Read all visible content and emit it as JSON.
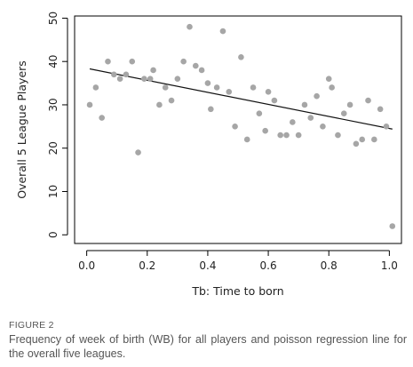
{
  "chart_data": {
    "type": "scatter",
    "title": "",
    "xlabel": "Tb: Time to born",
    "ylabel": "Overall 5 League Players",
    "xlim": [
      -0.04,
      1.04
    ],
    "ylim": [
      -2,
      50.5
    ],
    "xticks": [
      0.0,
      0.2,
      0.4,
      0.6,
      0.8,
      1.0
    ],
    "xtick_labels": [
      "0.0",
      "0.2",
      "0.4",
      "0.6",
      "0.8",
      "1.0"
    ],
    "yticks": [
      0,
      10,
      20,
      30,
      40,
      50
    ],
    "ytick_labels": [
      "0",
      "10",
      "20",
      "30",
      "40",
      "50"
    ],
    "grid": false,
    "point_color": "#a6a6a6",
    "line_color": "#111111",
    "points": [
      {
        "x": 0.01,
        "y": 30
      },
      {
        "x": 0.03,
        "y": 34
      },
      {
        "x": 0.05,
        "y": 27
      },
      {
        "x": 0.07,
        "y": 40
      },
      {
        "x": 0.09,
        "y": 37
      },
      {
        "x": 0.11,
        "y": 36
      },
      {
        "x": 0.13,
        "y": 37
      },
      {
        "x": 0.15,
        "y": 40
      },
      {
        "x": 0.17,
        "y": 19
      },
      {
        "x": 0.19,
        "y": 36
      },
      {
        "x": 0.21,
        "y": 36
      },
      {
        "x": 0.22,
        "y": 38
      },
      {
        "x": 0.24,
        "y": 30
      },
      {
        "x": 0.26,
        "y": 34
      },
      {
        "x": 0.28,
        "y": 31
      },
      {
        "x": 0.3,
        "y": 36
      },
      {
        "x": 0.32,
        "y": 40
      },
      {
        "x": 0.34,
        "y": 48
      },
      {
        "x": 0.36,
        "y": 39
      },
      {
        "x": 0.38,
        "y": 38
      },
      {
        "x": 0.4,
        "y": 35
      },
      {
        "x": 0.41,
        "y": 29
      },
      {
        "x": 0.43,
        "y": 34
      },
      {
        "x": 0.45,
        "y": 47
      },
      {
        "x": 0.47,
        "y": 33
      },
      {
        "x": 0.49,
        "y": 25
      },
      {
        "x": 0.51,
        "y": 41
      },
      {
        "x": 0.53,
        "y": 22
      },
      {
        "x": 0.55,
        "y": 34
      },
      {
        "x": 0.57,
        "y": 28
      },
      {
        "x": 0.59,
        "y": 24
      },
      {
        "x": 0.6,
        "y": 33
      },
      {
        "x": 0.62,
        "y": 31
      },
      {
        "x": 0.64,
        "y": 23
      },
      {
        "x": 0.66,
        "y": 23
      },
      {
        "x": 0.68,
        "y": 26
      },
      {
        "x": 0.7,
        "y": 23
      },
      {
        "x": 0.72,
        "y": 30
      },
      {
        "x": 0.74,
        "y": 27
      },
      {
        "x": 0.76,
        "y": 32
      },
      {
        "x": 0.78,
        "y": 25
      },
      {
        "x": 0.8,
        "y": 36
      },
      {
        "x": 0.81,
        "y": 34
      },
      {
        "x": 0.83,
        "y": 23
      },
      {
        "x": 0.85,
        "y": 28
      },
      {
        "x": 0.87,
        "y": 30
      },
      {
        "x": 0.89,
        "y": 21
      },
      {
        "x": 0.91,
        "y": 22
      },
      {
        "x": 0.93,
        "y": 31
      },
      {
        "x": 0.95,
        "y": 22
      },
      {
        "x": 0.97,
        "y": 29
      },
      {
        "x": 0.99,
        "y": 25
      },
      {
        "x": 1.01,
        "y": 2
      }
    ],
    "regression_line": {
      "x": [
        0.01,
        1.01
      ],
      "y": [
        38.3,
        24.4
      ]
    }
  },
  "caption": {
    "figure_label": "FIGURE 2",
    "text": "Frequency of week of birth (WB) for all players and poisson regression line for the overall five leagues."
  }
}
